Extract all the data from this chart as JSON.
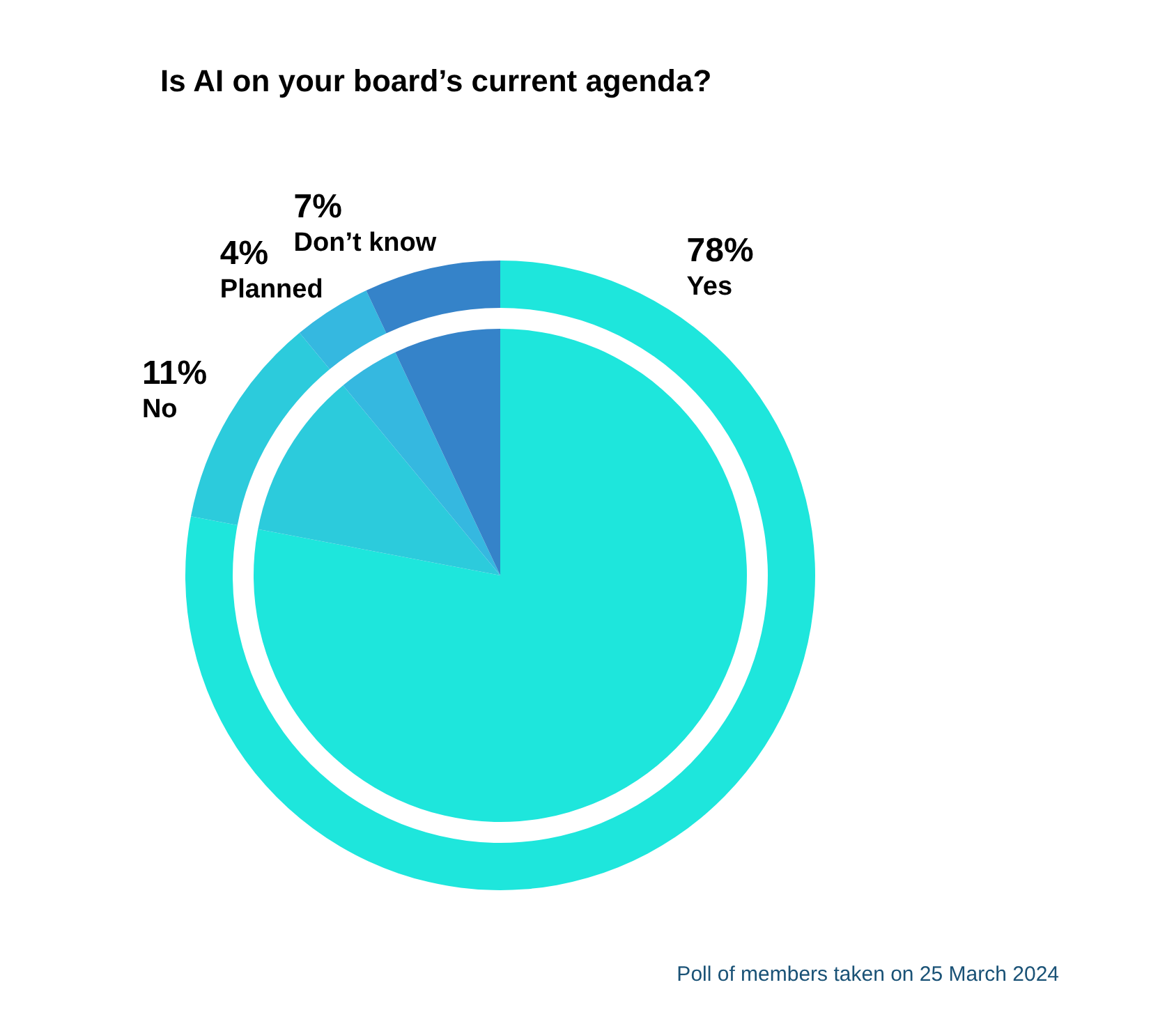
{
  "chart_data": [
    {
      "type": "donut",
      "title": "Is AI on your board’s current agenda?",
      "categories": [
        "Yes",
        "No",
        "Planned",
        "Don’t know"
      ],
      "values": [
        78,
        11,
        4,
        7
      ],
      "colors": [
        "#1ee6dc",
        "#2ccbdc",
        "#35b8e0",
        "#3583c9"
      ],
      "value_labels": [
        "78%",
        "11%",
        "4%",
        "7%"
      ],
      "legend": false,
      "annotations": [
        "Poll of members taken on 25 March 2024"
      ]
    },
    {
      "type": "pie",
      "categories": [
        null,
        null,
        null,
        null
      ],
      "values": [
        78,
        11,
        4,
        7
      ],
      "colors": [
        "#1ee6dc",
        "#2ccbdc",
        "#35b8e0",
        "#3583c9"
      ],
      "legend": false
    }
  ]
}
